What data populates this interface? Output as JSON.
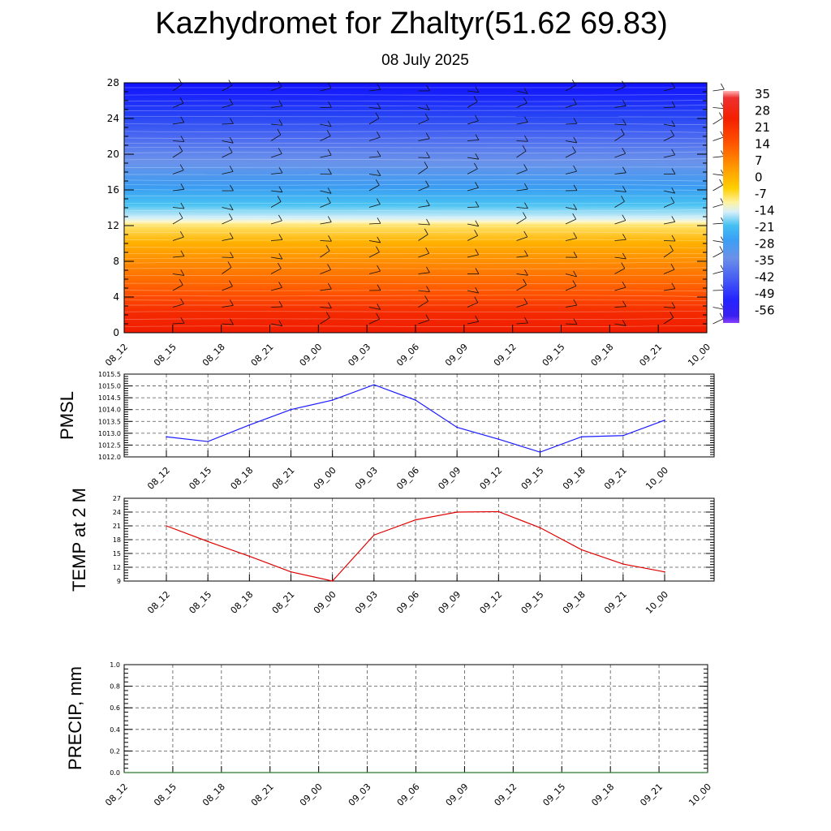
{
  "header": {
    "title": "Kazhydromet for Zhaltyr(51.62 69.83)",
    "subtitle": "08 July 2025"
  },
  "colors": {
    "pmsl_line": "#1a1aff",
    "temp_line": "#e00000",
    "precip_line": "#2a7a2a",
    "grid": "#555555",
    "colorscale": [
      "#7a3cff",
      "#2222ff",
      "#3a6aff",
      "#6f9cf0",
      "#39b7f0",
      "#c8ecf7",
      "#fff2a0",
      "#ffd000",
      "#ff9800",
      "#ff5a00",
      "#f21f00",
      "#ffb0b0"
    ]
  },
  "chart_data": [
    {
      "type": "heatmap",
      "title": "",
      "x": [
        "08_12",
        "08_15",
        "08_18",
        "08_21",
        "09_00",
        "09_03",
        "09_06",
        "09_09",
        "09_12",
        "09_15",
        "09_18",
        "09_21",
        "10_00"
      ],
      "yticks": [
        0,
        4,
        8,
        12,
        16,
        20,
        24,
        28
      ],
      "ylim": [
        0,
        28
      ],
      "freezing_level": 12.4,
      "colorbar": {
        "labels": [
          "35",
          "28",
          "21",
          "14",
          "7",
          "0",
          "-7",
          "-14",
          "-21",
          "-28",
          "-35",
          "-42",
          "-49",
          "-56"
        ]
      },
      "wind_barbs": true
    },
    {
      "type": "line",
      "ylabel": "PMSL",
      "x": [
        "08_12",
        "08_15",
        "08_18",
        "08_21",
        "09_00",
        "09_03",
        "09_06",
        "09_09",
        "09_12",
        "09_15",
        "09_18",
        "09_21",
        "10_00"
      ],
      "values": [
        1012.85,
        1012.65,
        1013.35,
        1014.0,
        1014.4,
        1015.05,
        1014.4,
        1013.25,
        1012.75,
        1012.2,
        1012.85,
        1012.9,
        1013.55
      ],
      "ylim": [
        1012.0,
        1015.5
      ],
      "yticks": [
        "1012.0",
        "1012.5",
        "1013.0",
        "1013.5",
        "1014.0",
        "1014.5",
        "1015.0",
        "1015.5"
      ],
      "grid": true
    },
    {
      "type": "line",
      "ylabel": "TEMP at 2 M",
      "x": [
        "08_12",
        "08_15",
        "08_18",
        "08_21",
        "09_00",
        "09_03",
        "09_06",
        "09_09",
        "09_12",
        "09_15",
        "09_18",
        "09_21",
        "10_00"
      ],
      "values": [
        21.0,
        17.6,
        14.4,
        11.0,
        9.0,
        19.0,
        22.3,
        24.0,
        24.1,
        20.6,
        15.8,
        12.7,
        11.0
      ],
      "ylim": [
        9,
        27
      ],
      "yticks": [
        "9",
        "12",
        "15",
        "18",
        "21",
        "24",
        "27"
      ],
      "grid": true
    },
    {
      "type": "line",
      "ylabel": "PRECIP, mm",
      "x": [
        "08_12",
        "08_15",
        "08_18",
        "08_21",
        "09_00",
        "09_03",
        "09_06",
        "09_09",
        "09_12",
        "09_15",
        "09_18",
        "09_21",
        "10_00"
      ],
      "values": [
        0,
        0,
        0,
        0,
        0,
        0,
        0,
        0,
        0,
        0,
        0,
        0,
        0
      ],
      "ylim": [
        0.0,
        1.0
      ],
      "yticks": [
        "0.0",
        "0.2",
        "0.4",
        "0.6",
        "0.8",
        "1.0"
      ],
      "grid": true
    }
  ]
}
